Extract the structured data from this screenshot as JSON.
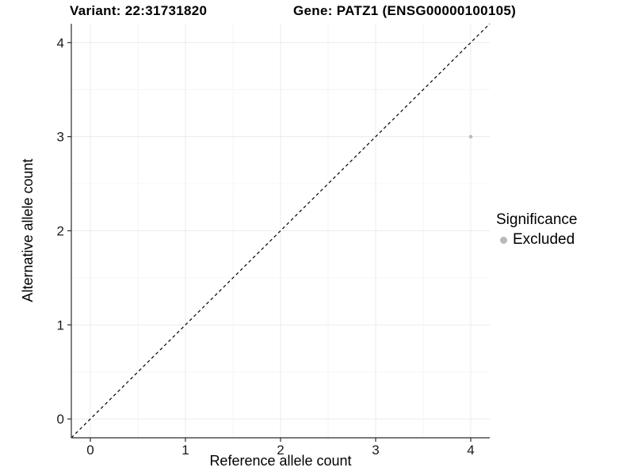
{
  "header": {
    "title_variant": "Variant: 22:31731820",
    "title_gene": "Gene: PATZ1 (ENSG00000100105)"
  },
  "chart_data": {
    "type": "scatter",
    "title_variant": "Variant: 22:31731820",
    "title_gene": "Gene: PATZ1 (ENSG00000100105)",
    "xlabel": "Reference allele count",
    "ylabel": "Alternative allele count",
    "xlim": [
      -0.2,
      4.2
    ],
    "ylim": [
      -0.2,
      4.2
    ],
    "xticks": [
      0,
      1,
      2,
      3,
      4
    ],
    "yticks": [
      0,
      1,
      2,
      3,
      4
    ],
    "minor_ticks": [
      0.5,
      1.5,
      2.5,
      3.5
    ],
    "grid": true,
    "reference_line": {
      "style": "dashed",
      "slope": 1,
      "intercept": 0
    },
    "points": [
      {
        "x": 4,
        "y": 3,
        "series": "Excluded"
      }
    ],
    "legend": {
      "title": "Significance",
      "position": "right",
      "entries": [
        {
          "label": "Excluded",
          "color": "#b9b9b9"
        }
      ]
    }
  },
  "colors": {
    "background": "#ffffff",
    "point": "#bcbcbc",
    "grid_major": "#ebebeb",
    "grid_minor": "#f6f6f6",
    "axis": "#2b2b2b",
    "tick_text": "#1a1a1a",
    "dashed_line": "#000000",
    "text": "#000000"
  }
}
